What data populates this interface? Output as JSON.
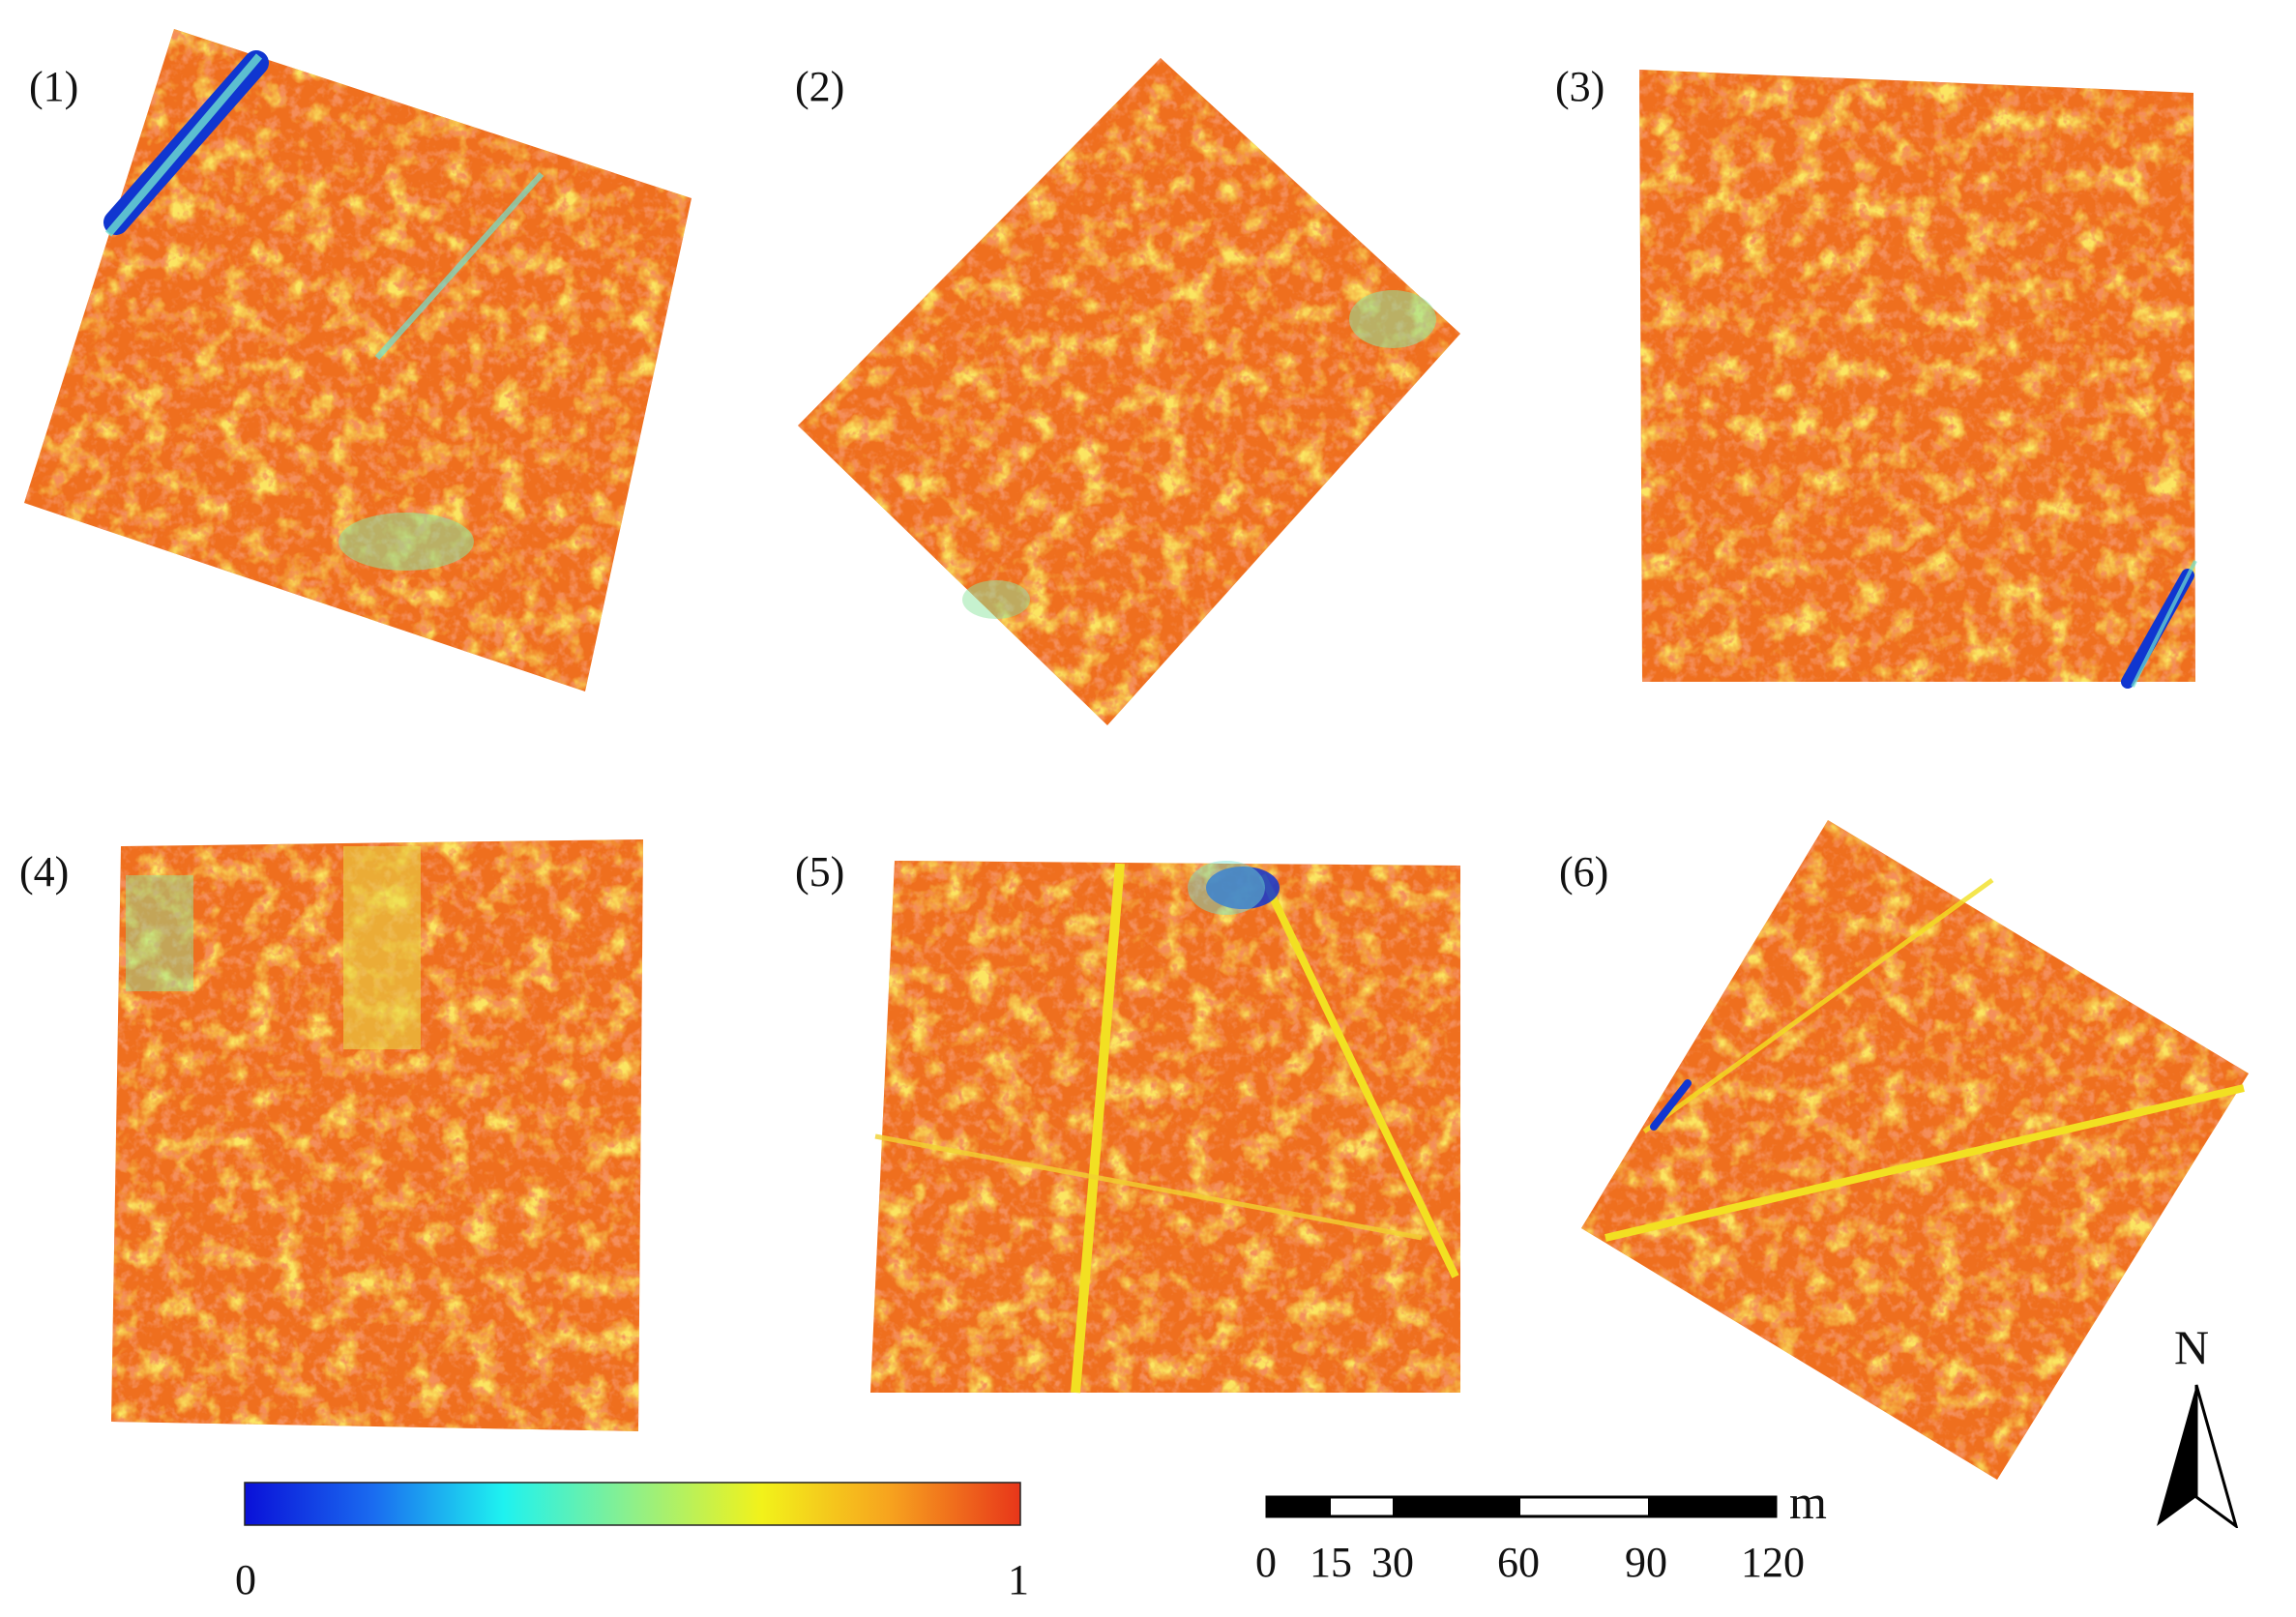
{
  "panels": [
    {
      "label": "(1)"
    },
    {
      "label": "(2)"
    },
    {
      "label": "(3)"
    },
    {
      "label": "(4)"
    },
    {
      "label": "(5)"
    },
    {
      "label": "(6)"
    }
  ],
  "colorbar": {
    "min_label": "0",
    "max_label": "1",
    "stops": [
      "#0a10d8",
      "#1a6cf0",
      "#1ef2f0",
      "#8ef08a",
      "#f2f21a",
      "#f7a21e",
      "#e8361a"
    ]
  },
  "scalebar": {
    "unit": "m",
    "ticks": [
      "0",
      "15",
      "30",
      "60",
      "90",
      "120"
    ]
  },
  "north_arrow": {
    "label": "N"
  },
  "palette": {
    "red_orange": "#e8501e",
    "orange": "#f07a1c",
    "yellow": "#f2e022",
    "cyan": "#6fe2d0",
    "blue": "#1036d0"
  }
}
